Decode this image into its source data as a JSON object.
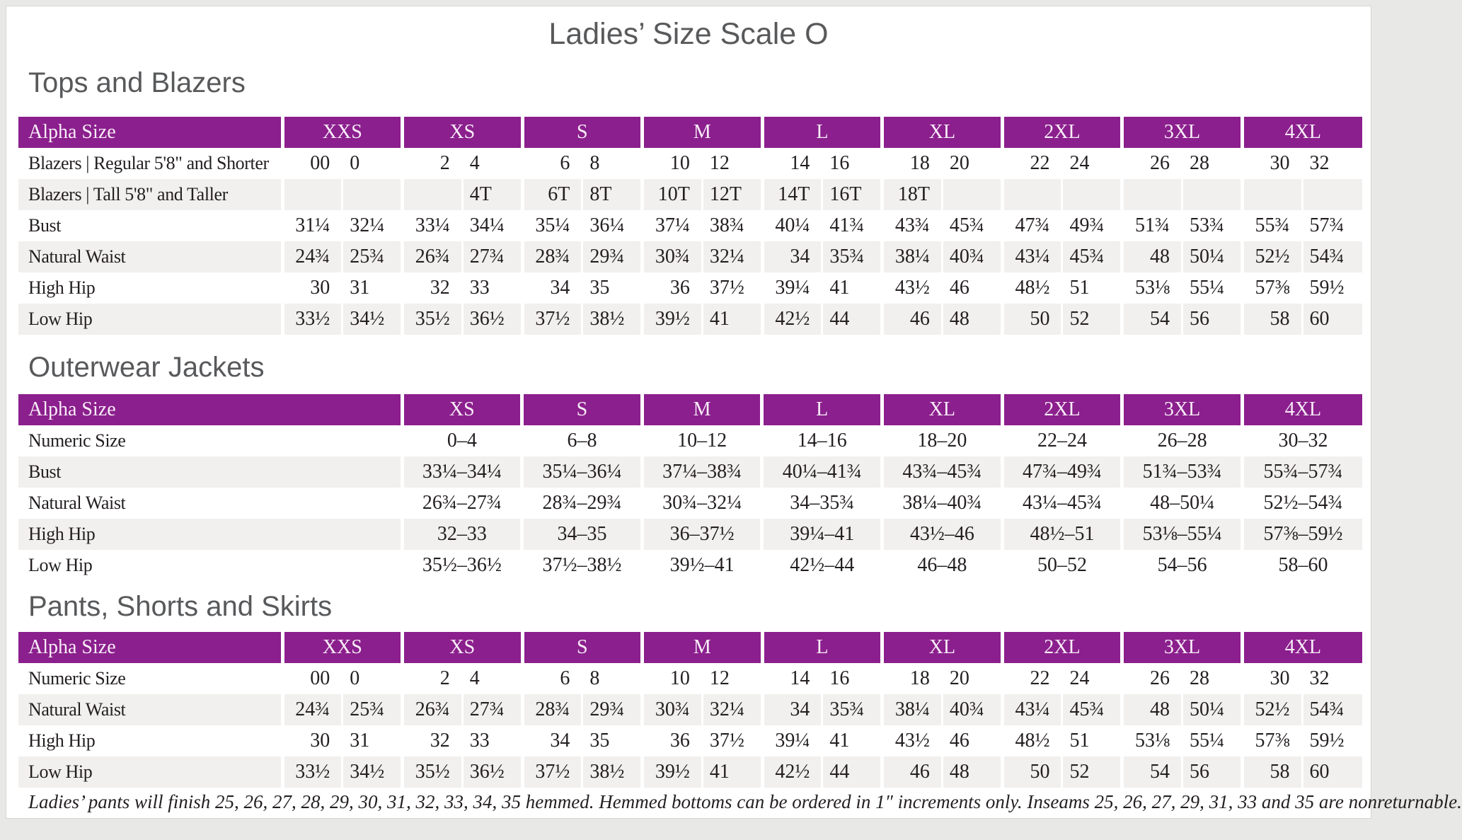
{
  "title": "Ladies’ Size Scale O",
  "colors": {
    "header_purple": "#8B1F8D",
    "row_stripe": "#F1F0EE",
    "heading_gray": "#58595B",
    "body_text": "#231F20",
    "frame_gray": "#E8E8E7"
  },
  "tables": [
    {
      "heading": "Tops and Blazers",
      "header_label": "Alpha Size",
      "groups": [
        "XXS",
        "XS",
        "S",
        "M",
        "L",
        "XL",
        "2XL",
        "3XL",
        "4XL"
      ],
      "rows": [
        {
          "label": "Blazers | Regular 5'8\" and Shorter",
          "values": [
            "00",
            "0",
            "2",
            "4",
            "6",
            "8",
            "10",
            "12",
            "14",
            "16",
            "18",
            "20",
            "22",
            "24",
            "26",
            "28",
            "30",
            "32"
          ]
        },
        {
          "label": "Blazers | Tall 5'8\" and Taller",
          "values": [
            "",
            "",
            "",
            "4T",
            "6T",
            "8T",
            "10T",
            "12T",
            "14T",
            "16T",
            "18T",
            "",
            "",
            "",
            "",
            "",
            "",
            ""
          ]
        },
        {
          "label": "Bust",
          "values": [
            "31¼",
            "32¼",
            "33¼",
            "34¼",
            "35¼",
            "36¼",
            "37¼",
            "38¾",
            "40¼",
            "41¾",
            "43¾",
            "45¾",
            "47¾",
            "49¾",
            "51¾",
            "53¾",
            "55¾",
            "57¾"
          ]
        },
        {
          "label": "Natural Waist",
          "values": [
            "24¾",
            "25¾",
            "26¾",
            "27¾",
            "28¾",
            "29¾",
            "30¾",
            "32¼",
            "34",
            "35¾",
            "38¼",
            "40¾",
            "43¼",
            "45¾",
            "48",
            "50¼",
            "52½",
            "54¾"
          ]
        },
        {
          "label": "High Hip",
          "values": [
            "30",
            "31",
            "32",
            "33",
            "34",
            "35",
            "36",
            "37½",
            "39¼",
            "41",
            "43½",
            "46",
            "48½",
            "51",
            "53⅛",
            "55¼",
            "57⅜",
            "59½"
          ]
        },
        {
          "label": "Low Hip",
          "values": [
            "33½",
            "34½",
            "35½",
            "36½",
            "37½",
            "38½",
            "39½",
            "41",
            "42½",
            "44",
            "46",
            "48",
            "50",
            "52",
            "54",
            "56",
            "58",
            "60"
          ]
        }
      ]
    },
    {
      "heading": "Outerwear Jackets",
      "header_label": "Alpha Size",
      "columns": [
        "XS",
        "S",
        "M",
        "L",
        "XL",
        "2XL",
        "3XL",
        "4XL"
      ],
      "rows": [
        {
          "label": "Numeric Size",
          "values": [
            "0–4",
            "6–8",
            "10–12",
            "14–16",
            "18–20",
            "22–24",
            "26–28",
            "30–32"
          ]
        },
        {
          "label": "Bust",
          "values": [
            "33¼–34¼",
            "35¼–36¼",
            "37¼–38¾",
            "40¼–41¾",
            "43¾–45¾",
            "47¾–49¾",
            "51¾–53¾",
            "55¾–57¾"
          ]
        },
        {
          "label": "Natural Waist",
          "values": [
            "26¾–27¾",
            "28¾–29¾",
            "30¾–32¼",
            "34–35¾",
            "38¼–40¾",
            "43¼–45¾",
            "48–50¼",
            "52½–54¾"
          ]
        },
        {
          "label": "High Hip",
          "values": [
            "32–33",
            "34–35",
            "36–37½",
            "39¼–41",
            "43½–46",
            "48½–51",
            "53⅛–55¼",
            "57⅜–59½"
          ]
        },
        {
          "label": "Low Hip",
          "values": [
            "35½–36½",
            "37½–38½",
            "39½–41",
            "42½–44",
            "46–48",
            "50–52",
            "54–56",
            "58–60"
          ]
        }
      ]
    },
    {
      "heading": "Pants, Shorts and Skirts",
      "header_label": "Alpha Size",
      "groups": [
        "XXS",
        "XS",
        "S",
        "M",
        "L",
        "XL",
        "2XL",
        "3XL",
        "4XL"
      ],
      "rows": [
        {
          "label": "Numeric Size",
          "values": [
            "00",
            "0",
            "2",
            "4",
            "6",
            "8",
            "10",
            "12",
            "14",
            "16",
            "18",
            "20",
            "22",
            "24",
            "26",
            "28",
            "30",
            "32"
          ]
        },
        {
          "label": "Natural Waist",
          "values": [
            "24¾",
            "25¾",
            "26¾",
            "27¾",
            "28¾",
            "29¾",
            "30¾",
            "32¼",
            "34",
            "35¾",
            "38¼",
            "40¾",
            "43¼",
            "45¾",
            "48",
            "50¼",
            "52½",
            "54¾"
          ]
        },
        {
          "label": "High Hip",
          "values": [
            "30",
            "31",
            "32",
            "33",
            "34",
            "35",
            "36",
            "37½",
            "39¼",
            "41",
            "43½",
            "46",
            "48½",
            "51",
            "53⅛",
            "55¼",
            "57⅜",
            "59½"
          ]
        },
        {
          "label": "Low Hip",
          "values": [
            "33½",
            "34½",
            "35½",
            "36½",
            "37½",
            "38½",
            "39½",
            "41",
            "42½",
            "44",
            "46",
            "48",
            "50",
            "52",
            "54",
            "56",
            "58",
            "60"
          ]
        }
      ]
    }
  ],
  "footnote": "Ladies’ pants will finish 25, 26, 27, 28, 29, 30, 31, 32, 33, 34, 35 hemmed. Hemmed bottoms can be ordered in 1″ increments only. Inseams 25, 26, 27, 29, 31, 33 and 35 are nonreturnable."
}
